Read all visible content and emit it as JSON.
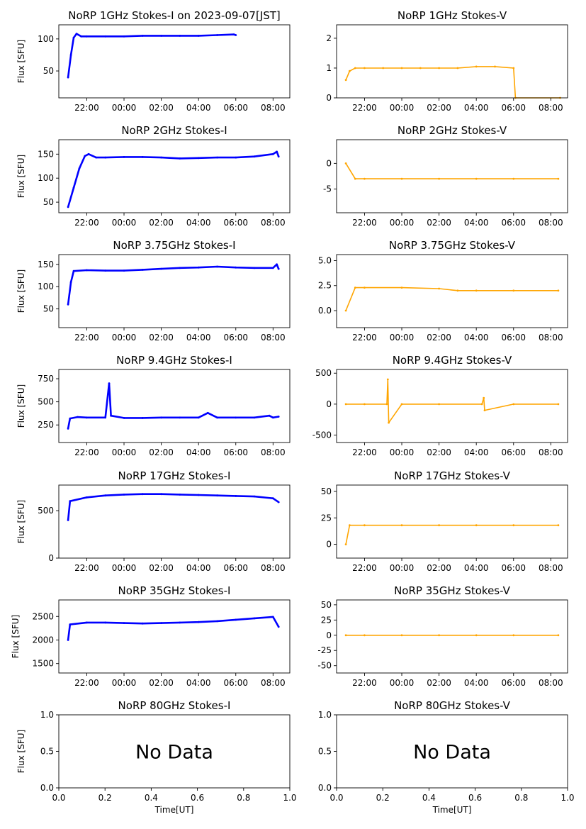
{
  "figure": {
    "xlabel": "Time[UT]",
    "ylabel": "Flux [SFU]",
    "no_data_text": "No Data",
    "colors": {
      "stokes_i": "#0000ff",
      "stokes_v": "#ffa500"
    },
    "time_ticks": [
      "22:00",
      "00:00",
      "02:00",
      "04:00",
      "06:00",
      "08:00"
    ],
    "unit_ticks": [
      "0.0",
      "0.2",
      "0.4",
      "0.6",
      "0.8",
      "1.0"
    ]
  },
  "chart_data": [
    {
      "type": "scatter",
      "title": "NoRP 1GHz Stokes-I on 2023-09-07[JST]",
      "ylabel": "Flux [SFU]",
      "x_axis": "time",
      "xlim": [
        20.5,
        32.9
      ],
      "ylim": [
        8,
        122
      ],
      "yticks": [
        50,
        100
      ],
      "series": [
        {
          "points": [
            [
              21.0,
              40
            ],
            [
              21.15,
              75
            ],
            [
              21.3,
              102
            ],
            [
              21.45,
              108
            ],
            [
              21.7,
              104
            ],
            [
              22.0,
              104
            ],
            [
              23.0,
              104
            ],
            [
              24.0,
              104
            ],
            [
              25.0,
              105
            ],
            [
              26.0,
              105
            ],
            [
              27.0,
              105
            ],
            [
              28.0,
              105
            ],
            [
              29.0,
              106
            ],
            [
              29.9,
              107
            ],
            [
              30.0,
              106
            ]
          ]
        }
      ]
    },
    {
      "type": "scatter",
      "title": "NoRP 1GHz Stokes-V",
      "x_axis": "time",
      "xlim": [
        20.5,
        32.9
      ],
      "ylim": [
        0,
        2.45
      ],
      "yticks": [
        0,
        1,
        2
      ],
      "series": [
        {
          "points": [
            [
              21.0,
              0.6
            ],
            [
              21.2,
              0.9
            ],
            [
              21.5,
              1.0
            ],
            [
              22.0,
              1.0
            ],
            [
              23.0,
              1.0
            ],
            [
              24.0,
              1.0
            ],
            [
              25.0,
              1.0
            ],
            [
              26.0,
              1.0
            ],
            [
              27.0,
              1.0
            ],
            [
              28.0,
              1.05
            ],
            [
              29.0,
              1.05
            ],
            [
              30.0,
              1.0
            ],
            [
              30.1,
              0.0
            ],
            [
              32.5,
              0.0
            ]
          ]
        }
      ]
    },
    {
      "type": "scatter",
      "title": "NoRP 2GHz Stokes-I",
      "ylabel": "Flux [SFU]",
      "x_axis": "time",
      "xlim": [
        20.5,
        32.9
      ],
      "ylim": [
        28,
        180
      ],
      "yticks": [
        50,
        100,
        150
      ],
      "series": [
        {
          "points": [
            [
              21.0,
              40
            ],
            [
              21.3,
              80
            ],
            [
              21.6,
              120
            ],
            [
              21.9,
              146
            ],
            [
              22.1,
              150
            ],
            [
              22.5,
              143
            ],
            [
              23.0,
              143
            ],
            [
              24.0,
              144
            ],
            [
              25.0,
              144
            ],
            [
              26.0,
              143
            ],
            [
              27.0,
              141
            ],
            [
              28.0,
              142
            ],
            [
              29.0,
              143
            ],
            [
              30.0,
              143
            ],
            [
              31.0,
              145
            ],
            [
              32.0,
              150
            ],
            [
              32.2,
              155
            ],
            [
              32.3,
              145
            ]
          ]
        }
      ]
    },
    {
      "type": "scatter",
      "title": "NoRP 2GHz Stokes-V",
      "x_axis": "time",
      "xlim": [
        20.5,
        32.9
      ],
      "ylim": [
        -9.6,
        4.6
      ],
      "yticks": [
        -5,
        0
      ],
      "series": [
        {
          "points": [
            [
              21.0,
              0
            ],
            [
              21.5,
              -3
            ],
            [
              22.0,
              -3
            ],
            [
              24.0,
              -3
            ],
            [
              26.0,
              -3
            ],
            [
              28.0,
              -3
            ],
            [
              30.0,
              -3
            ],
            [
              32.4,
              -3
            ]
          ]
        }
      ]
    },
    {
      "type": "scatter",
      "title": "NoRP 3.75GHz Stokes-I",
      "ylabel": "Flux [SFU]",
      "x_axis": "time",
      "xlim": [
        20.5,
        32.9
      ],
      "ylim": [
        8,
        172
      ],
      "yticks": [
        50,
        100,
        150
      ],
      "series": [
        {
          "points": [
            [
              21.0,
              60
            ],
            [
              21.15,
              110
            ],
            [
              21.3,
              135
            ],
            [
              22.0,
              137
            ],
            [
              23.0,
              136
            ],
            [
              24.0,
              136
            ],
            [
              25.0,
              138
            ],
            [
              26.0,
              140
            ],
            [
              27.0,
              142
            ],
            [
              28.0,
              143
            ],
            [
              29.0,
              145
            ],
            [
              30.0,
              143
            ],
            [
              31.0,
              142
            ],
            [
              32.0,
              142
            ],
            [
              32.2,
              150
            ],
            [
              32.3,
              140
            ]
          ]
        }
      ]
    },
    {
      "type": "scatter",
      "title": "NoRP 3.75GHz Stokes-V",
      "x_axis": "time",
      "xlim": [
        20.5,
        32.9
      ],
      "ylim": [
        -1.7,
        5.6
      ],
      "yticks": [
        0.0,
        2.5,
        5.0
      ],
      "series": [
        {
          "points": [
            [
              21.0,
              0
            ],
            [
              21.5,
              2.3
            ],
            [
              22.0,
              2.3
            ],
            [
              24.0,
              2.3
            ],
            [
              26.0,
              2.2
            ],
            [
              27.0,
              2.0
            ],
            [
              28.0,
              2.0
            ],
            [
              30.0,
              2.0
            ],
            [
              32.4,
              2.0
            ]
          ]
        }
      ]
    },
    {
      "type": "scatter",
      "title": "NoRP 9.4GHz Stokes-I",
      "ylabel": "Flux [SFU]",
      "x_axis": "time",
      "xlim": [
        20.5,
        32.9
      ],
      "ylim": [
        60,
        850
      ],
      "yticks": [
        250,
        500,
        750
      ],
      "series": [
        {
          "points": [
            [
              21.0,
              210
            ],
            [
              21.1,
              320
            ],
            [
              21.5,
              335
            ],
            [
              22.0,
              330
            ],
            [
              23.0,
              330
            ],
            [
              23.2,
              700
            ],
            [
              23.3,
              350
            ],
            [
              24.0,
              325
            ],
            [
              25.0,
              325
            ],
            [
              26.0,
              330
            ],
            [
              27.0,
              330
            ],
            [
              28.0,
              330
            ],
            [
              28.5,
              380
            ],
            [
              29.0,
              330
            ],
            [
              30.0,
              330
            ],
            [
              31.0,
              330
            ],
            [
              31.8,
              350
            ],
            [
              32.0,
              330
            ],
            [
              32.3,
              340
            ]
          ]
        }
      ]
    },
    {
      "type": "scatter",
      "title": "NoRP 9.4GHz Stokes-V",
      "x_axis": "time",
      "xlim": [
        20.5,
        32.9
      ],
      "ylim": [
        -620,
        560
      ],
      "yticks": [
        -500,
        0,
        500
      ],
      "series": [
        {
          "points": [
            [
              21.0,
              0
            ],
            [
              22.0,
              0
            ],
            [
              23.2,
              0
            ],
            [
              23.25,
              400
            ],
            [
              23.3,
              -300
            ],
            [
              24.0,
              0
            ],
            [
              26.0,
              0
            ],
            [
              28.3,
              0
            ],
            [
              28.4,
              100
            ],
            [
              28.45,
              -100
            ],
            [
              30.0,
              0
            ],
            [
              32.4,
              0
            ]
          ]
        }
      ]
    },
    {
      "type": "scatter",
      "title": "NoRP 17GHz Stokes-I",
      "ylabel": "Flux [SFU]",
      "x_axis": "time",
      "xlim": [
        20.5,
        32.9
      ],
      "ylim": [
        0,
        770
      ],
      "yticks": [
        0,
        500
      ],
      "series": [
        {
          "points": [
            [
              21.0,
              400
            ],
            [
              21.1,
              600
            ],
            [
              22.0,
              640
            ],
            [
              23.0,
              660
            ],
            [
              24.0,
              670
            ],
            [
              25.0,
              675
            ],
            [
              26.0,
              675
            ],
            [
              27.0,
              670
            ],
            [
              28.0,
              665
            ],
            [
              29.0,
              660
            ],
            [
              30.0,
              655
            ],
            [
              31.0,
              650
            ],
            [
              32.0,
              630
            ],
            [
              32.3,
              590
            ]
          ]
        }
      ]
    },
    {
      "type": "scatter",
      "title": "NoRP 17GHz Stokes-V",
      "x_axis": "time",
      "xlim": [
        20.5,
        32.9
      ],
      "ylim": [
        -13,
        56
      ],
      "yticks": [
        0,
        25,
        50
      ],
      "series": [
        {
          "points": [
            [
              21.0,
              0
            ],
            [
              21.2,
              18
            ],
            [
              22.0,
              18
            ],
            [
              24.0,
              18
            ],
            [
              26.0,
              18
            ],
            [
              28.0,
              18
            ],
            [
              30.0,
              18
            ],
            [
              32.4,
              18
            ]
          ]
        }
      ]
    },
    {
      "type": "scatter",
      "title": "NoRP 35GHz Stokes-I",
      "ylabel": "Flux [SFU]",
      "x_axis": "time",
      "xlim": [
        20.5,
        32.9
      ],
      "ylim": [
        1300,
        2850
      ],
      "yticks": [
        1500,
        2000,
        2500
      ],
      "series": [
        {
          "points": [
            [
              21.0,
              2000
            ],
            [
              21.1,
              2330
            ],
            [
              22.0,
              2370
            ],
            [
              23.0,
              2370
            ],
            [
              24.0,
              2360
            ],
            [
              25.0,
              2350
            ],
            [
              26.0,
              2360
            ],
            [
              27.0,
              2370
            ],
            [
              28.0,
              2380
            ],
            [
              29.0,
              2400
            ],
            [
              30.0,
              2430
            ],
            [
              31.0,
              2460
            ],
            [
              32.0,
              2490
            ],
            [
              32.3,
              2280
            ]
          ]
        }
      ]
    },
    {
      "type": "scatter",
      "title": "NoRP 35GHz Stokes-V",
      "x_axis": "time",
      "xlim": [
        20.5,
        32.9
      ],
      "ylim": [
        -62,
        58
      ],
      "yticks": [
        -50,
        -25,
        0,
        25,
        50
      ],
      "series": [
        {
          "points": [
            [
              21.0,
              0
            ],
            [
              22.0,
              0
            ],
            [
              24.0,
              0
            ],
            [
              26.0,
              0
            ],
            [
              28.0,
              0
            ],
            [
              30.0,
              0
            ],
            [
              32.4,
              0
            ]
          ]
        }
      ]
    },
    {
      "type": "scatter",
      "title": "NoRP 80GHz Stokes-I",
      "ylabel": "Flux [SFU]",
      "xlabel": "Time[UT]",
      "x_axis": "unit",
      "xlim": [
        0,
        1
      ],
      "ylim": [
        0,
        1
      ],
      "yticks": [
        0.0,
        0.5,
        1.0
      ],
      "no_data": true,
      "series": []
    },
    {
      "type": "scatter",
      "title": "NoRP 80GHz Stokes-V",
      "xlabel": "Time[UT]",
      "x_axis": "unit",
      "xlim": [
        0,
        1
      ],
      "ylim": [
        0,
        1
      ],
      "yticks": [
        0.0,
        0.5,
        1.0
      ],
      "no_data": true,
      "series": []
    }
  ]
}
